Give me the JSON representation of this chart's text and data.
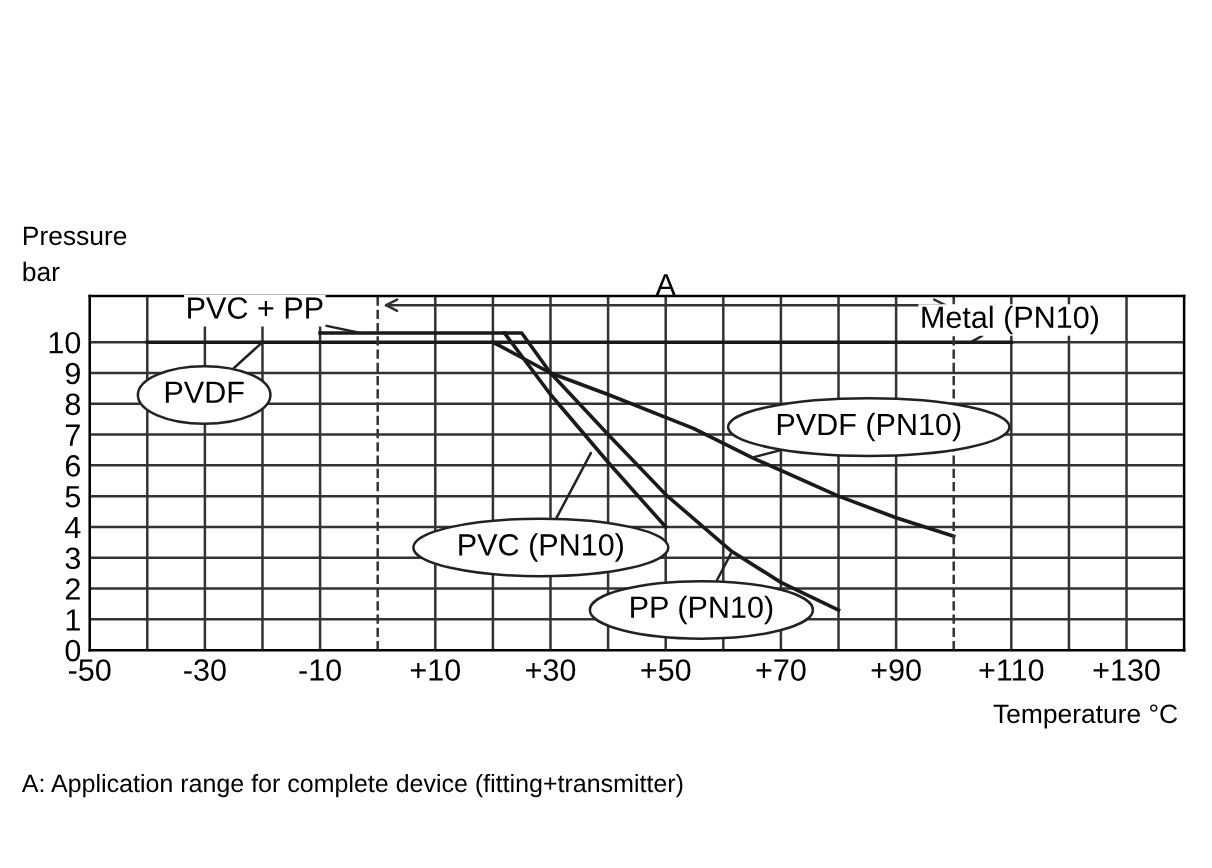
{
  "chart_data": {
    "type": "line",
    "ylabel": "Pressure\nbar",
    "xlabel": "Temperature °C",
    "xlim": [
      -50,
      140
    ],
    "ylim": [
      0,
      11.5
    ],
    "xticks": [
      {
        "value": -50,
        "label": "-50"
      },
      {
        "value": -40,
        "label": null
      },
      {
        "value": -30,
        "label": "-30"
      },
      {
        "value": -20,
        "label": null
      },
      {
        "value": -10,
        "label": "-10"
      },
      {
        "value": 10,
        "label": "+10"
      },
      {
        "value": 20,
        "label": null
      },
      {
        "value": 30,
        "label": "+30"
      },
      {
        "value": 40,
        "label": null
      },
      {
        "value": 50,
        "label": "+50"
      },
      {
        "value": 60,
        "label": null
      },
      {
        "value": 70,
        "label": "+70"
      },
      {
        "value": 80,
        "label": null
      },
      {
        "value": 90,
        "label": "+90"
      },
      {
        "value": 110,
        "label": "+110"
      },
      {
        "value": 120,
        "label": null
      },
      {
        "value": 130,
        "label": "+130"
      }
    ],
    "yticks": [
      0,
      1,
      2,
      3,
      4,
      5,
      6,
      7,
      8,
      9,
      10
    ],
    "grid": true,
    "line_style": "solid",
    "marker": "none",
    "series": [
      {
        "color": "#1a1a1a",
        "x": [
          -40,
          110
        ],
        "values": [
          10,
          10
        ]
      },
      {
        "color": "#1a1a1a",
        "x": [
          -10,
          22,
          30,
          40,
          50
        ],
        "values": [
          10.3,
          10.3,
          8.3,
          6.1,
          4.0
        ]
      },
      {
        "color": "#1a1a1a",
        "x": [
          22,
          25,
          30,
          40,
          50,
          61.5,
          70,
          80
        ],
        "values": [
          10.3,
          10.3,
          9.0,
          7.0,
          5.05,
          3.2,
          2.2,
          1.3
        ]
      },
      {
        "color": "#1a1a1a",
        "x": [
          20,
          30,
          40,
          54.8,
          65,
          80,
          90,
          100
        ],
        "values": [
          10,
          9.0,
          8.3,
          7.2,
          6.25,
          5.0,
          4.3,
          3.7
        ]
      }
    ],
    "ref_lines": [
      {
        "axis": "x",
        "value": 0,
        "line_style": "dashed"
      },
      {
        "axis": "x",
        "value": 100,
        "line_style": "dashed"
      }
    ],
    "annotations": [
      "A",
      {
        "text": "PVC + PP",
        "x": -3,
        "y": 10.3
      },
      {
        "text": "Metal (PN10)",
        "x": 103,
        "y": 10
      },
      {
        "text": "PVDF",
        "x": -20,
        "y": 10
      },
      {
        "text": "PVDF (PN10)",
        "x": 65,
        "y": 6.25
      },
      {
        "text": "PVC (PN10)",
        "x": 37,
        "y": 6.4
      },
      {
        "text": "PP (PN10)",
        "x": 61.5,
        "y": 3.2
      },
      "A: Application range for complete device (fitting+transmitter)"
    ]
  }
}
